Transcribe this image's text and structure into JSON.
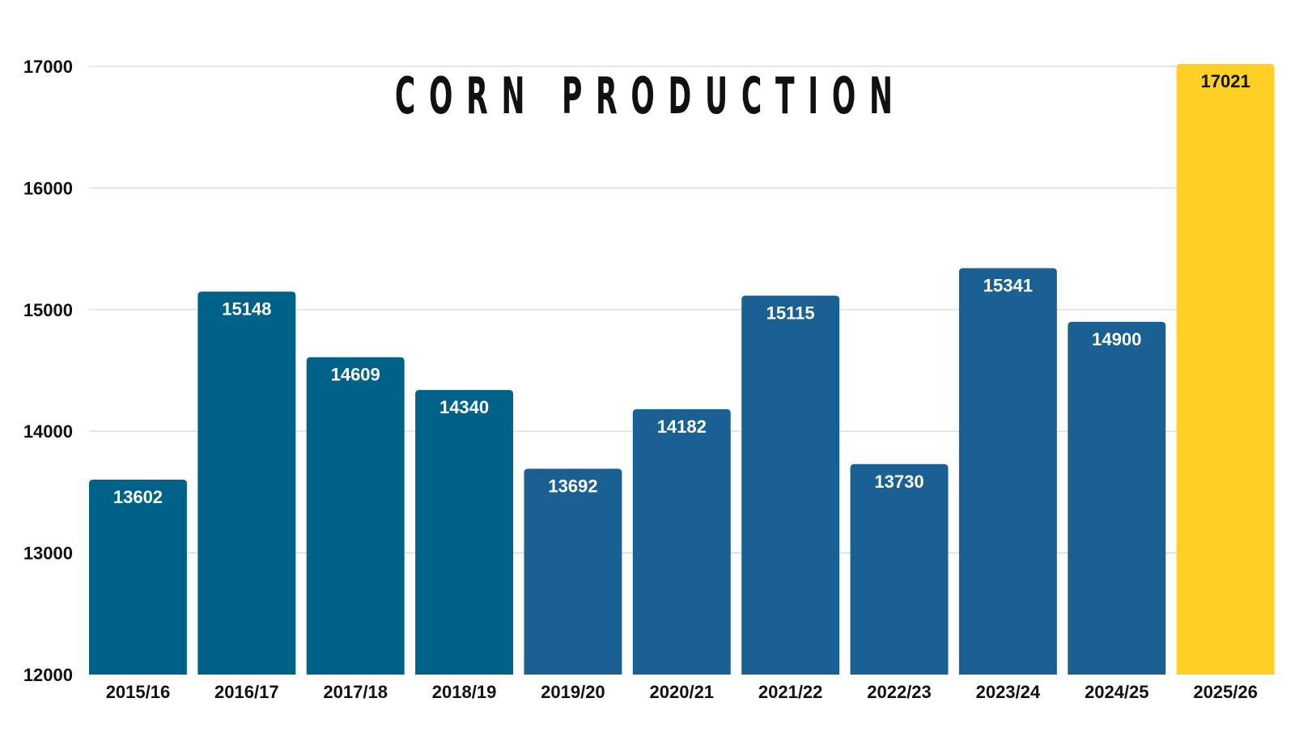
{
  "chart_data": {
    "type": "bar",
    "title": "CORN PRODUCTION",
    "categories": [
      "2015/16",
      "2016/17",
      "2017/18",
      "2018/19",
      "2019/20",
      "2020/21",
      "2021/22",
      "2022/23",
      "2023/24",
      "2024/25",
      "2025/26"
    ],
    "values": [
      13602,
      15148,
      14609,
      14340,
      13692,
      14182,
      15115,
      13730,
      15341,
      14900,
      17021
    ],
    "ylim": [
      12000,
      17000
    ],
    "yticks": [
      12000,
      13000,
      14000,
      15000,
      16000,
      17000
    ],
    "grid": true,
    "data_labels": true,
    "colors": [
      "#006289",
      "#006289",
      "#006289",
      "#006289",
      "#1a6092",
      "#1a6092",
      "#1a6092",
      "#1a6092",
      "#1a6092",
      "#1a6092",
      "#fecf24"
    ],
    "label_colors": [
      "#ffffff",
      "#ffffff",
      "#ffffff",
      "#ffffff",
      "#ffffff",
      "#ffffff",
      "#ffffff",
      "#ffffff",
      "#ffffff",
      "#ffffff",
      "#111111"
    ]
  }
}
